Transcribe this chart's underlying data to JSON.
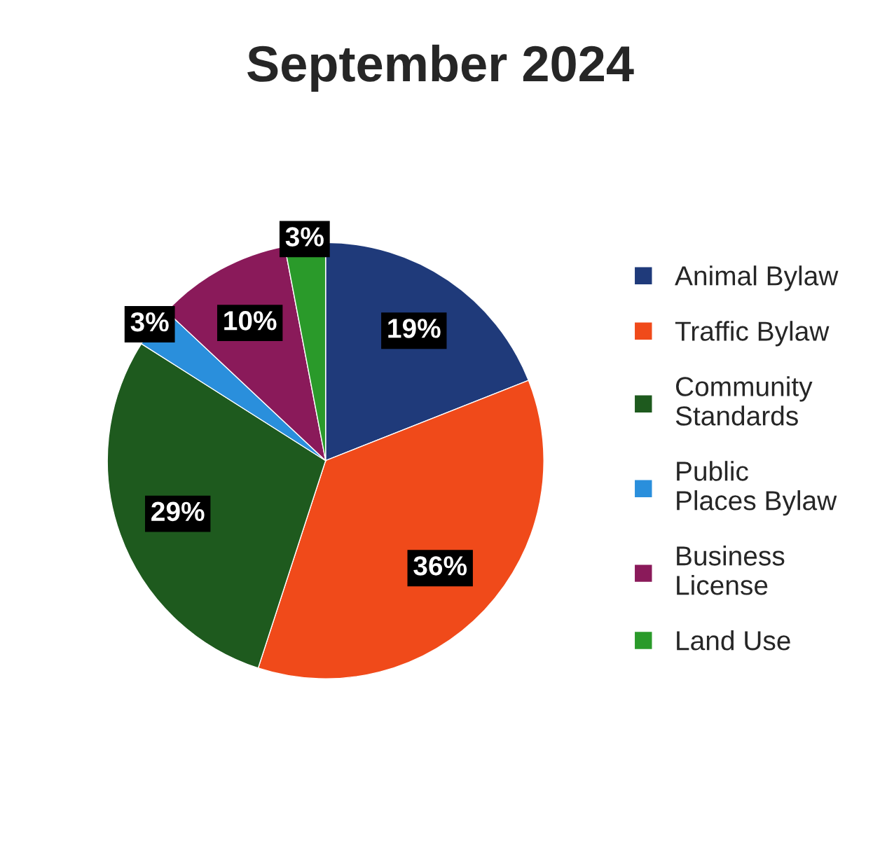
{
  "chart_data": {
    "type": "pie",
    "title": "September 2024",
    "categories": [
      "Animal Bylaw",
      "Traffic Bylaw",
      "Community Standards",
      "Public Places Bylaw",
      "Business License",
      "Land Use"
    ],
    "values": [
      19,
      36,
      29,
      3,
      10,
      3
    ],
    "colors": [
      "#1f3a7a",
      "#f04a1a",
      "#1e5a1e",
      "#2a8fdc",
      "#8a1a5a",
      "#2a9a2a"
    ],
    "value_labels": [
      "19%",
      "36%",
      "29%",
      "3%",
      "10%",
      "3%"
    ],
    "legend": "right"
  }
}
